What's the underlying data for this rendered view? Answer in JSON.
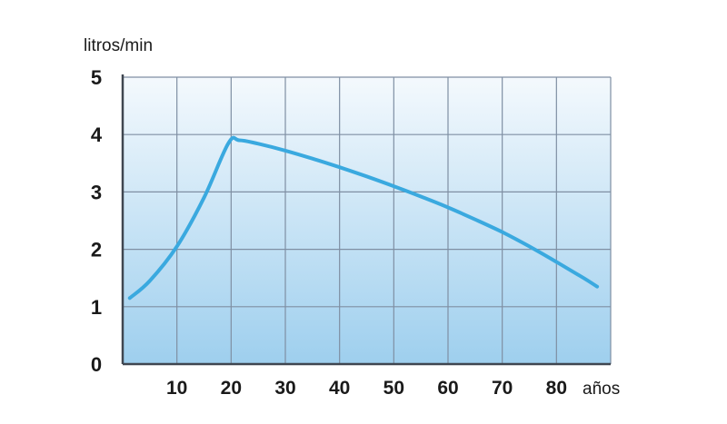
{
  "chart_data": {
    "type": "line",
    "ylabel": "litros/min",
    "xlabel": "años",
    "xlim": [
      0,
      90
    ],
    "ylim": [
      0,
      5
    ],
    "x_ticks": [
      "10",
      "20",
      "30",
      "40",
      "50",
      "60",
      "70",
      "80"
    ],
    "y_ticks": [
      "0",
      "1",
      "2",
      "3",
      "4",
      "5"
    ],
    "grid": true,
    "series": [
      {
        "x": [
          1.3,
          5,
          10,
          15,
          19.5,
          21.5,
          25,
          30,
          35,
          40,
          45,
          50,
          55,
          60,
          65,
          70,
          75,
          80,
          85,
          87.5
        ],
        "values": [
          1.15,
          1.45,
          2.05,
          2.9,
          3.85,
          3.9,
          3.84,
          3.72,
          3.58,
          3.43,
          3.27,
          3.1,
          2.92,
          2.73,
          2.52,
          2.3,
          2.05,
          1.78,
          1.5,
          1.35
        ]
      }
    ],
    "colors": {
      "line": "#3aa9df",
      "grid": "#7f8fa3",
      "bg_top": "#f4f9fd",
      "bg_bottom": "#9ecfee"
    }
  }
}
